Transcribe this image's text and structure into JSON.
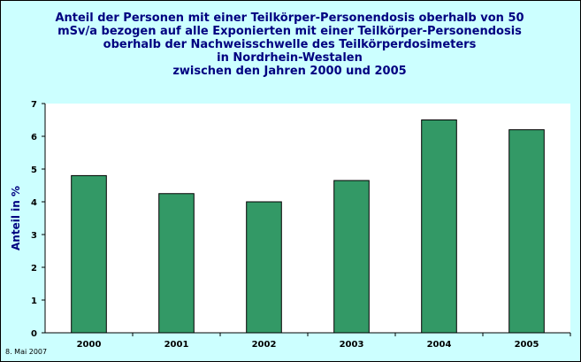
{
  "chart_data": {
    "type": "bar",
    "title_lines": [
      "Anteil der Personen mit einer Teilkörper-Personendosis oberhalb von 50",
      "mSv/a bezogen auf alle Exponierten mit einer Teilkörper-Personendosis",
      "oberhalb der Nachweisschwelle des Teilkörperdosimeters",
      "in Nordrhein-Westalen",
      "zwischen den Jahren 2000 und 2005"
    ],
    "ylabel": "Anteil in %",
    "xlabel": "",
    "categories": [
      "2000",
      "2001",
      "2002",
      "2003",
      "2004",
      "2005"
    ],
    "values": [
      4.8,
      4.25,
      4.0,
      4.65,
      6.5,
      6.2
    ],
    "ylim": [
      0,
      7
    ],
    "yticks": [
      0,
      1,
      2,
      3,
      4,
      5,
      6,
      7
    ],
    "grid": false,
    "legend": "none",
    "bar_color": "#339966",
    "plot_background": "#ffffff",
    "background": "#ccffff",
    "title_color": "#000080"
  },
  "footnote": "8. Mai 2007"
}
